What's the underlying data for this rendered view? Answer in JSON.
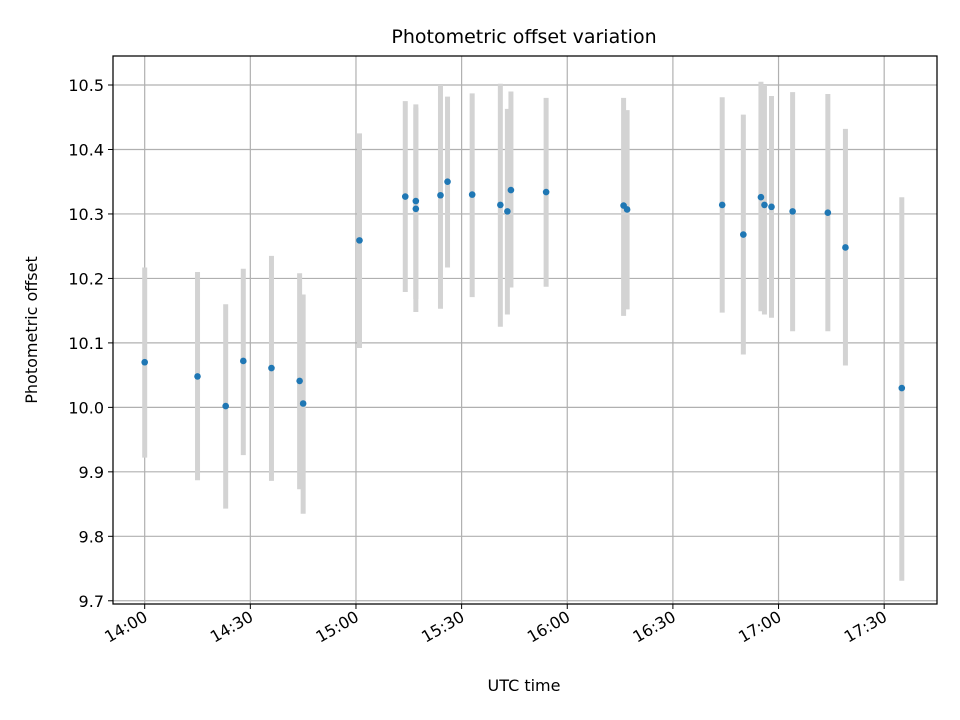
{
  "chart_data": {
    "type": "scatter",
    "title": "Photometric offset variation",
    "xlabel": "UTC time",
    "ylabel": "Photometric offset",
    "x_ticks": [
      "14:00",
      "14:30",
      "15:00",
      "15:30",
      "16:00",
      "16:30",
      "17:00",
      "17:30"
    ],
    "y_ticks": [
      "9.7",
      "9.8",
      "9.9",
      "10.0",
      "10.1",
      "10.2",
      "10.3",
      "10.4",
      "10.5"
    ],
    "xlim": [
      "13:51",
      "17:45"
    ],
    "ylim": [
      9.695,
      10.545
    ],
    "grid": true,
    "legend": "none",
    "colors": {
      "point": "#1f77b4",
      "errorbar": "#d3d3d3",
      "grid": "#b0b0b0"
    },
    "series": [
      {
        "x": [
          "14:00",
          "14:15",
          "14:23",
          "14:28",
          "14:36",
          "14:44",
          "14:45",
          "15:01",
          "15:14",
          "15:17",
          "15:17",
          "15:24",
          "15:26",
          "15:33",
          "15:41",
          "15:43",
          "15:44",
          "15:54",
          "16:16",
          "16:17",
          "16:44",
          "16:50",
          "16:55",
          "16:56",
          "16:58",
          "17:04",
          "17:14",
          "17:19",
          "17:35"
        ],
        "y": [
          10.07,
          10.048,
          10.002,
          10.072,
          10.061,
          10.041,
          10.006,
          10.259,
          10.327,
          10.308,
          10.32,
          10.329,
          10.35,
          10.33,
          10.314,
          10.304,
          10.337,
          10.334,
          10.313,
          10.307,
          10.314,
          10.268,
          10.326,
          10.314,
          10.311,
          10.304,
          10.302,
          10.248,
          10.03
        ],
        "y_low": [
          9.922,
          9.887,
          9.843,
          9.926,
          9.886,
          9.873,
          9.835,
          10.092,
          10.179,
          10.148,
          10.168,
          10.153,
          10.217,
          10.171,
          10.125,
          10.144,
          10.186,
          10.187,
          10.142,
          10.152,
          10.147,
          10.082,
          10.149,
          10.144,
          10.139,
          10.118,
          10.118,
          10.065,
          9.731
        ],
        "y_high": [
          10.217,
          10.21,
          10.16,
          10.215,
          10.235,
          10.208,
          10.175,
          10.425,
          10.475,
          10.465,
          10.47,
          10.5,
          10.482,
          10.487,
          10.502,
          10.463,
          10.49,
          10.48,
          10.48,
          10.461,
          10.481,
          10.454,
          10.505,
          10.5,
          10.483,
          10.489,
          10.486,
          10.432,
          10.326
        ]
      }
    ]
  }
}
